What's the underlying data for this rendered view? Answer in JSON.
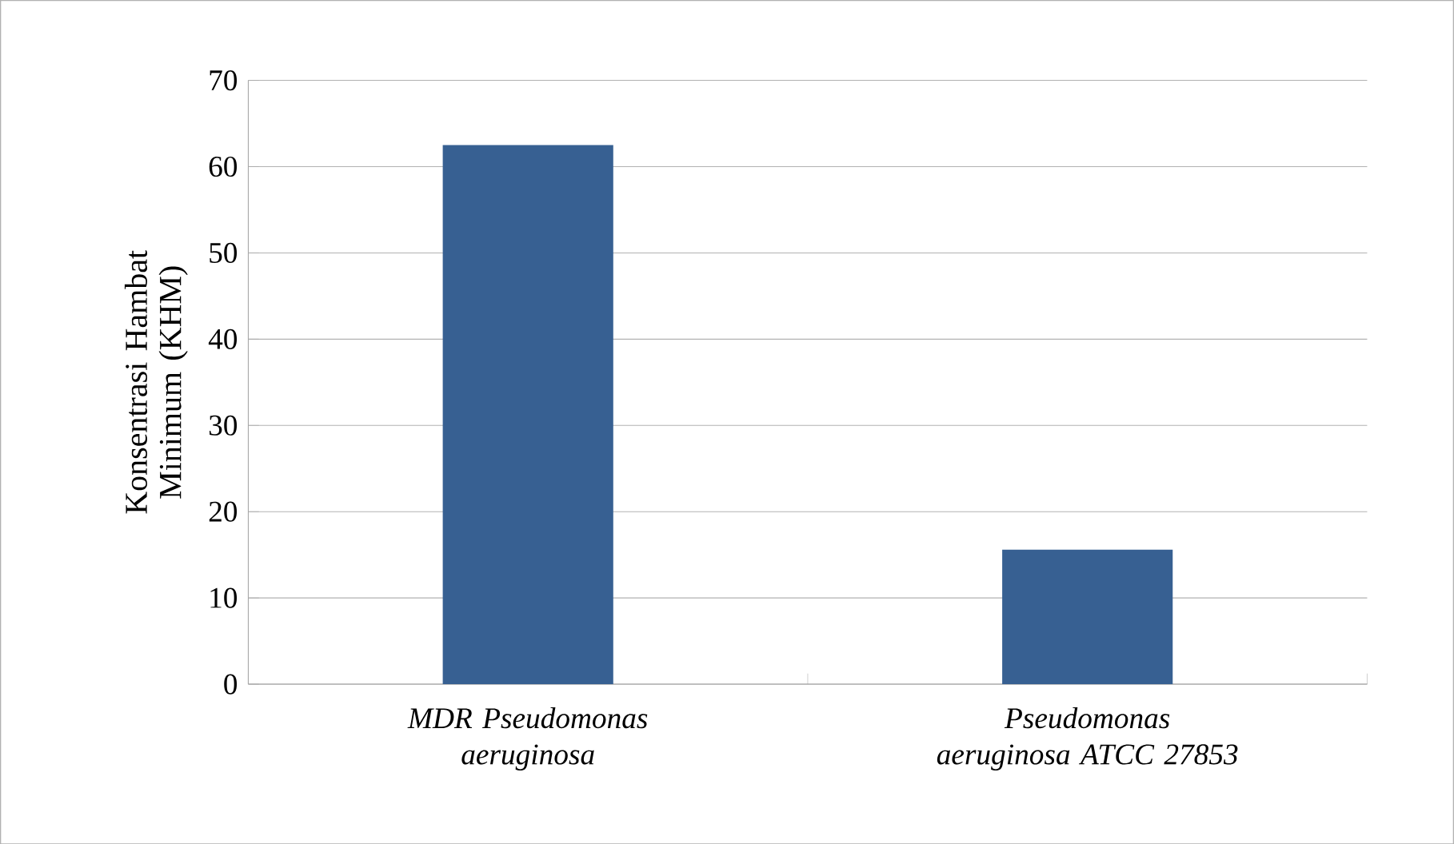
{
  "chart_data": {
    "type": "bar",
    "ylabel": "Konsentrasi  Hambat Minimum (KHM)",
    "categories": [
      "MDR Pseudomonas aeruginosa",
      "Pseudomonas aeruginosa ATCC 27853"
    ],
    "values": [
      62.5,
      15.6
    ],
    "color": "#376092",
    "ylim": [
      0,
      70
    ],
    "yticks": [
      0,
      10,
      20,
      30,
      40,
      50,
      60,
      70
    ],
    "grid": "y"
  }
}
